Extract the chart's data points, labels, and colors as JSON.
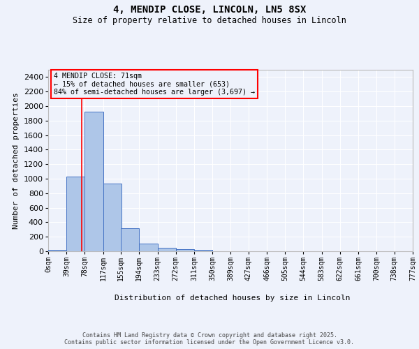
{
  "title": "4, MENDIP CLOSE, LINCOLN, LN5 8SX",
  "subtitle": "Size of property relative to detached houses in Lincoln",
  "xlabel": "Distribution of detached houses by size in Lincoln",
  "ylabel": "Number of detached properties",
  "bin_labels": [
    "0sqm",
    "39sqm",
    "78sqm",
    "117sqm",
    "155sqm",
    "194sqm",
    "233sqm",
    "272sqm",
    "311sqm",
    "350sqm",
    "389sqm",
    "427sqm",
    "466sqm",
    "505sqm",
    "544sqm",
    "583sqm",
    "622sqm",
    "661sqm",
    "700sqm",
    "738sqm",
    "777sqm"
  ],
  "bin_edges": [
    0,
    39,
    78,
    117,
    155,
    194,
    233,
    272,
    311,
    350,
    389,
    427,
    466,
    505,
    544,
    583,
    622,
    661,
    700,
    738,
    777
  ],
  "bar_heights": [
    20,
    1025,
    1925,
    930,
    315,
    110,
    50,
    25,
    20,
    0,
    0,
    0,
    0,
    0,
    0,
    0,
    0,
    0,
    0,
    0
  ],
  "bar_color": "#aec6e8",
  "bar_edge_color": "#4472c4",
  "red_line_x": 71,
  "ylim": [
    0,
    2500
  ],
  "yticks": [
    0,
    200,
    400,
    600,
    800,
    1000,
    1200,
    1400,
    1600,
    1800,
    2000,
    2200,
    2400
  ],
  "annotation_box_text": "4 MENDIP CLOSE: 71sqm\n← 15% of detached houses are smaller (653)\n84% of semi-detached houses are larger (3,697) →",
  "bg_color": "#eef2fb",
  "grid_color": "#ffffff",
  "footer_line1": "Contains HM Land Registry data © Crown copyright and database right 2025.",
  "footer_line2": "Contains public sector information licensed under the Open Government Licence v3.0."
}
